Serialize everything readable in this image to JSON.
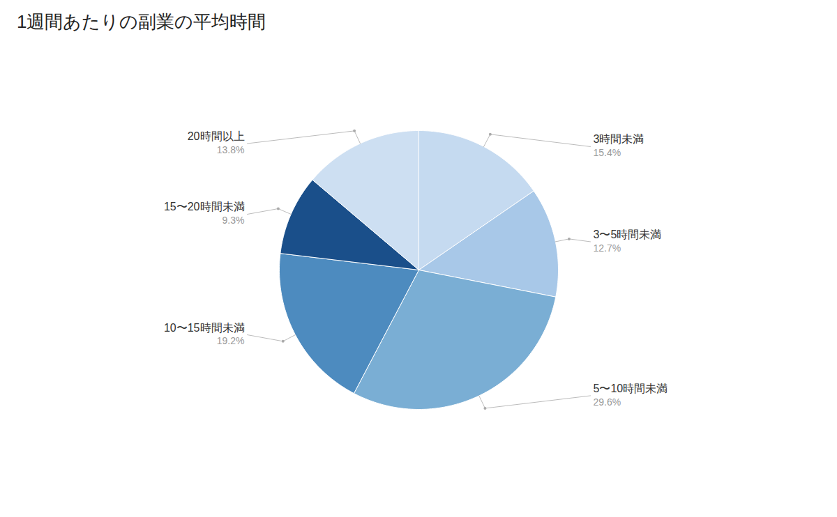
{
  "chart_data": {
    "type": "pie",
    "title": "1週間あたりの副業の平均時間",
    "categories": [
      "3時間未満",
      "3〜5時間未満",
      "5〜10時間未満",
      "10〜15時間未満",
      "15〜20時間未満",
      "20時間以上"
    ],
    "values": [
      15.4,
      12.7,
      29.6,
      19.2,
      9.3,
      13.8
    ],
    "value_labels": [
      "15.4%",
      "12.7%",
      "29.6%",
      "19.2%",
      "9.3%",
      "13.8%"
    ],
    "colors": [
      "#c5daf0",
      "#a8c8e8",
      "#7aaed4",
      "#4d8bbf",
      "#1a4f8a",
      "#cddff2"
    ],
    "data_labels": true
  }
}
